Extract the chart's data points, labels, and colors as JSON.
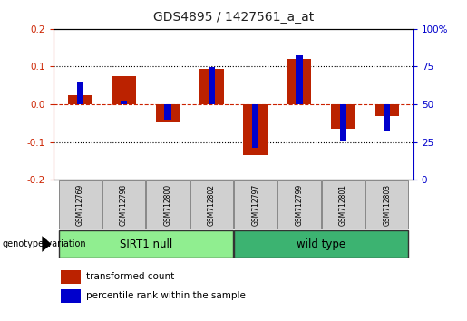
{
  "title": "GDS4895 / 1427561_a_at",
  "samples": [
    "GSM712769",
    "GSM712798",
    "GSM712800",
    "GSM712802",
    "GSM712797",
    "GSM712799",
    "GSM712801",
    "GSM712803"
  ],
  "red_values": [
    0.025,
    0.075,
    -0.045,
    0.095,
    -0.135,
    0.12,
    -0.065,
    -0.03
  ],
  "blue_values": [
    0.06,
    0.01,
    -0.04,
    0.098,
    -0.115,
    0.13,
    -0.096,
    -0.07
  ],
  "group1_label": "SIRT1 null",
  "group2_label": "wild type",
  "group1_indices": [
    0,
    1,
    2,
    3
  ],
  "group2_indices": [
    4,
    5,
    6,
    7
  ],
  "group1_color": "#90EE90",
  "group2_color": "#3CB371",
  "red_color": "#BB2200",
  "blue_color": "#0000CC",
  "ylim": [
    -0.2,
    0.2
  ],
  "yticks_left": [
    -0.2,
    -0.1,
    0.0,
    0.1,
    0.2
  ],
  "yticks_right": [
    0,
    25,
    50,
    75,
    100
  ],
  "legend_red": "transformed count",
  "legend_blue": "percentile rank within the sample",
  "red_bar_width": 0.55,
  "blue_bar_width": 0.15,
  "background_color": "#ffffff",
  "plot_bg": "#ffffff",
  "title_color": "#222222",
  "left_label_color": "#CC2200",
  "right_label_color": "#0000CC",
  "zero_line_color": "#CC2200",
  "dotted_line_color": "#000000",
  "sample_box_color": "#D0D0D0",
  "sample_box_edge": "#888888"
}
